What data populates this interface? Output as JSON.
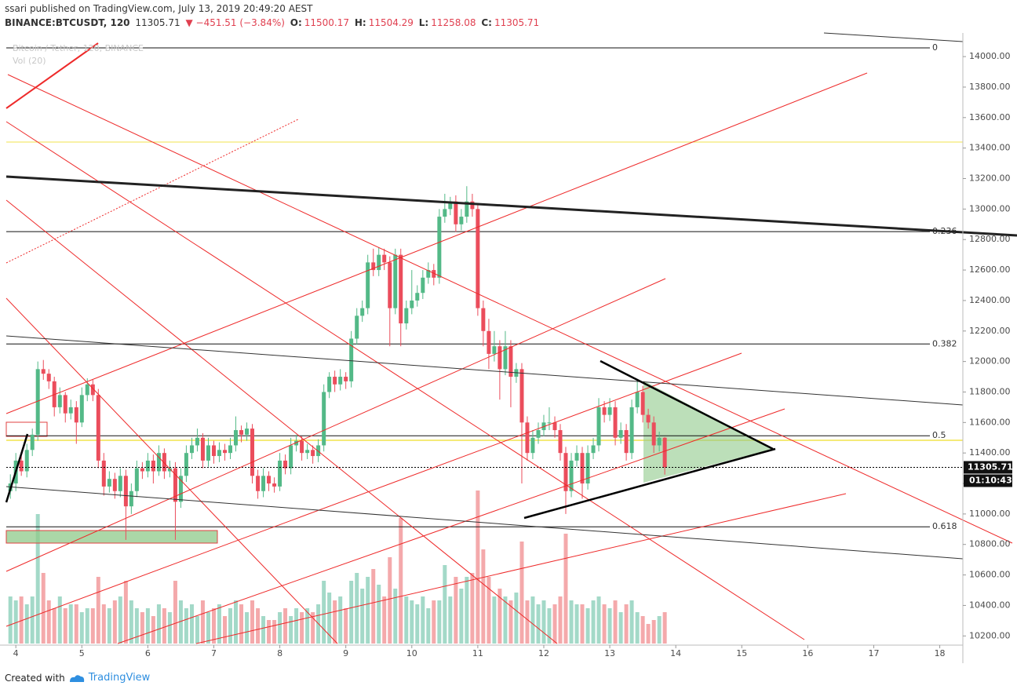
{
  "header": {
    "published": "ssari published on TradingView.com, July 13, 2019 20:49:20 AEST",
    "symbol": "BINANCE:BTCUSDT, 120",
    "last": "11305.71",
    "change": "▼ −451.51 (−3.84%)",
    "o_label": "O:",
    "o": "11500.17",
    "h_label": "H:",
    "h": "11504.29",
    "l_label": "L:",
    "l": "11258.08",
    "c_label": "C:",
    "c": "11305.71"
  },
  "footer": {
    "created": "Created with",
    "brand": "TradingView"
  },
  "chart_data": {
    "type": "candlestick",
    "series_name": "Bitcoin / Tether, 120, BINANCE",
    "up_color": "#53b987",
    "down_color": "#eb4d5c",
    "volume_up_color": "#a3d9c8",
    "volume_down_color": "#f4a9ab",
    "last_price_label": "11305.71",
    "countdown": "01:10:43",
    "xlim": [
      3.76,
      18.35
    ],
    "ylim": [
      10150,
      14155
    ],
    "xticks": [
      4,
      5,
      6,
      7,
      8,
      9,
      10,
      11,
      12,
      13,
      14,
      15,
      16,
      17,
      18
    ],
    "yticks": [
      {
        "value": 10200,
        "label": "10200.00"
      },
      {
        "value": 10400,
        "label": "10400.00"
      },
      {
        "value": 10600,
        "label": "10600.00"
      },
      {
        "value": 10800,
        "label": "10800.00"
      },
      {
        "value": 11000,
        "label": "11000.00"
      },
      {
        "value": 11200,
        "label": "11200.00"
      },
      {
        "value": 11400,
        "label": "11400.00"
      },
      {
        "value": 11600,
        "label": "11600.00"
      },
      {
        "value": 11800,
        "label": "11800.00"
      },
      {
        "value": 12000,
        "label": "12000.00"
      },
      {
        "value": 12200,
        "label": "12200.00"
      },
      {
        "value": 12400,
        "label": "12400.00"
      },
      {
        "value": 12600,
        "label": "12600.00"
      },
      {
        "value": 12800,
        "label": "12800.00"
      },
      {
        "value": 13000,
        "label": "13000.00"
      },
      {
        "value": 13200,
        "label": "13200.00"
      },
      {
        "value": 13400,
        "label": "13400.00"
      },
      {
        "value": 13600,
        "label": "13600.00"
      },
      {
        "value": 13800,
        "label": "13800.00"
      },
      {
        "value": 14000,
        "label": "14000.00"
      }
    ],
    "fib_levels": [
      {
        "value": 14057,
        "label": "0"
      },
      {
        "value": 12852,
        "label": "0.236"
      },
      {
        "value": 12115,
        "label": "0.382"
      },
      {
        "value": 11513,
        "label": "0.5"
      },
      {
        "value": 10916,
        "label": "0.618"
      }
    ],
    "x": [
      3.917,
      4,
      4.083,
      4.167,
      4.25,
      4.333,
      4.417,
      4.5,
      4.583,
      4.667,
      4.75,
      4.833,
      4.917,
      5,
      5.083,
      5.167,
      5.25,
      5.333,
      5.417,
      5.5,
      5.583,
      5.667,
      5.75,
      5.833,
      5.917,
      6,
      6.083,
      6.167,
      6.25,
      6.333,
      6.417,
      6.5,
      6.583,
      6.667,
      6.75,
      6.833,
      6.917,
      7,
      7.083,
      7.167,
      7.25,
      7.333,
      7.417,
      7.5,
      7.583,
      7.667,
      7.75,
      7.833,
      7.917,
      8,
      8.083,
      8.167,
      8.25,
      8.333,
      8.417,
      8.5,
      8.583,
      8.667,
      8.75,
      8.833,
      8.917,
      9,
      9.083,
      9.167,
      9.25,
      9.333,
      9.417,
      9.5,
      9.583,
      9.667,
      9.75,
      9.833,
      9.917,
      10,
      10.083,
      10.167,
      10.25,
      10.333,
      10.417,
      10.5,
      10.583,
      10.667,
      10.75,
      10.833,
      10.917,
      11,
      11.083,
      11.167,
      11.25,
      11.333,
      11.417,
      11.5,
      11.583,
      11.667,
      11.75,
      11.833,
      11.917,
      12,
      12.083,
      12.167,
      12.25,
      12.333,
      12.417,
      12.5,
      12.583,
      12.667,
      12.75,
      12.833,
      12.917,
      13,
      13.083,
      13.167,
      13.25,
      13.333,
      13.417,
      13.5,
      13.583,
      13.667,
      13.75,
      13.833
    ],
    "ohlc": [
      [
        11150,
        11260,
        11100,
        11200
      ],
      [
        11200,
        11400,
        11150,
        11350
      ],
      [
        11350,
        11380,
        11250,
        11280
      ],
      [
        11280,
        11460,
        11240,
        11420
      ],
      [
        11420,
        11560,
        11380,
        11520
      ],
      [
        11520,
        12000,
        11480,
        11950
      ],
      [
        11950,
        12010,
        11880,
        11920
      ],
      [
        11920,
        11950,
        11820,
        11870
      ],
      [
        11870,
        11900,
        11640,
        11700
      ],
      [
        11700,
        11830,
        11660,
        11780
      ],
      [
        11780,
        11800,
        11600,
        11660
      ],
      [
        11660,
        11750,
        11620,
        11700
      ],
      [
        11700,
        11740,
        11460,
        11600
      ],
      [
        11600,
        11830,
        11570,
        11780
      ],
      [
        11780,
        11890,
        11740,
        11850
      ],
      [
        11850,
        11880,
        11740,
        11780
      ],
      [
        11780,
        11820,
        11300,
        11350
      ],
      [
        11350,
        11400,
        11120,
        11180
      ],
      [
        11180,
        11280,
        11140,
        11230
      ],
      [
        11230,
        11270,
        11100,
        11150
      ],
      [
        11150,
        11300,
        11110,
        11250
      ],
      [
        11250,
        11290,
        10830,
        11050
      ],
      [
        11050,
        11200,
        11000,
        11150
      ],
      [
        11150,
        11350,
        11110,
        11300
      ],
      [
        11300,
        11340,
        11230,
        11280
      ],
      [
        11280,
        11400,
        11240,
        11350
      ],
      [
        11350,
        11390,
        11200,
        11280
      ],
      [
        11280,
        11450,
        11250,
        11400
      ],
      [
        11400,
        11430,
        11230,
        11280
      ],
      [
        11280,
        11350,
        11240,
        11300
      ],
      [
        11300,
        11340,
        10830,
        11080
      ],
      [
        11080,
        11300,
        11040,
        11250
      ],
      [
        11250,
        11450,
        11210,
        11400
      ],
      [
        11400,
        11500,
        11360,
        11450
      ],
      [
        11450,
        11560,
        11410,
        11500
      ],
      [
        11500,
        11530,
        11300,
        11350
      ],
      [
        11350,
        11500,
        11310,
        11450
      ],
      [
        11450,
        11480,
        11330,
        11380
      ],
      [
        11380,
        11470,
        11340,
        11420
      ],
      [
        11420,
        11460,
        11350,
        11400
      ],
      [
        11400,
        11500,
        11360,
        11450
      ],
      [
        11450,
        11640,
        11410,
        11550
      ],
      [
        11550,
        11580,
        11470,
        11520
      ],
      [
        11520,
        11600,
        11480,
        11560
      ],
      [
        11560,
        11590,
        11200,
        11250
      ],
      [
        11250,
        11290,
        11100,
        11150
      ],
      [
        11150,
        11300,
        11110,
        11250
      ],
      [
        11250,
        11280,
        11150,
        11200
      ],
      [
        11200,
        11240,
        11140,
        11180
      ],
      [
        11180,
        11400,
        11150,
        11350
      ],
      [
        11350,
        11390,
        11260,
        11300
      ],
      [
        11300,
        11500,
        11260,
        11450
      ],
      [
        11450,
        11520,
        11410,
        11480
      ],
      [
        11480,
        11510,
        11350,
        11400
      ],
      [
        11400,
        11460,
        11360,
        11420
      ],
      [
        11420,
        11450,
        11330,
        11380
      ],
      [
        11380,
        11490,
        11340,
        11450
      ],
      [
        11450,
        11850,
        11410,
        11800
      ],
      [
        11800,
        11930,
        11760,
        11900
      ],
      [
        11900,
        11940,
        11800,
        11850
      ],
      [
        11850,
        11950,
        11810,
        11900
      ],
      [
        11900,
        11930,
        11820,
        11870
      ],
      [
        11870,
        12200,
        11830,
        12150
      ],
      [
        12150,
        12350,
        12110,
        12300
      ],
      [
        12300,
        12400,
        12260,
        12350
      ],
      [
        12350,
        12700,
        12310,
        12650
      ],
      [
        12650,
        12740,
        12560,
        12600
      ],
      [
        12600,
        12750,
        12560,
        12700
      ],
      [
        12700,
        12740,
        12600,
        12650
      ],
      [
        12650,
        12690,
        12100,
        12350
      ],
      [
        12350,
        12740,
        12310,
        12700
      ],
      [
        12700,
        12740,
        12100,
        12250
      ],
      [
        12250,
        12400,
        12210,
        12350
      ],
      [
        12350,
        12600,
        12310,
        12400
      ],
      [
        12400,
        12500,
        12360,
        12450
      ],
      [
        12450,
        12600,
        12410,
        12550
      ],
      [
        12550,
        12650,
        12510,
        12600
      ],
      [
        12600,
        12640,
        12500,
        12550
      ],
      [
        12550,
        13000,
        12510,
        12950
      ],
      [
        12950,
        13100,
        12910,
        13000
      ],
      [
        13000,
        13080,
        12960,
        13050
      ],
      [
        13050,
        13090,
        12850,
        12900
      ],
      [
        12900,
        13000,
        12860,
        12950
      ],
      [
        12950,
        13150,
        12910,
        13050
      ],
      [
        13050,
        13100,
        12950,
        13000
      ],
      [
        13000,
        13040,
        12300,
        12350
      ],
      [
        12350,
        12400,
        12100,
        12200
      ],
      [
        12200,
        12280,
        11950,
        12050
      ],
      [
        12050,
        12200,
        12000,
        12100
      ],
      [
        12100,
        12140,
        11750,
        11950
      ],
      [
        11950,
        12200,
        11910,
        12100
      ],
      [
        12100,
        12140,
        11700,
        11900
      ],
      [
        11900,
        11990,
        11860,
        11950
      ],
      [
        11950,
        11990,
        11200,
        11600
      ],
      [
        11600,
        11640,
        11350,
        11400
      ],
      [
        11400,
        11550,
        11360,
        11500
      ],
      [
        11500,
        11600,
        11460,
        11550
      ],
      [
        11550,
        11650,
        11510,
        11600
      ],
      [
        11600,
        11700,
        11550,
        11600
      ],
      [
        11600,
        11640,
        11500,
        11550
      ],
      [
        11550,
        11590,
        11350,
        11400
      ],
      [
        11400,
        11440,
        11000,
        11150
      ],
      [
        11150,
        11400,
        11110,
        11350
      ],
      [
        11350,
        11450,
        11310,
        11400
      ],
      [
        11400,
        11440,
        11100,
        11200
      ],
      [
        11200,
        11450,
        11160,
        11400
      ],
      [
        11400,
        11500,
        11360,
        11450
      ],
      [
        11450,
        11760,
        11410,
        11700
      ],
      [
        11700,
        11740,
        11600,
        11650
      ],
      [
        11650,
        11760,
        11610,
        11700
      ],
      [
        11700,
        11740,
        11450,
        11500
      ],
      [
        11500,
        11600,
        11460,
        11550
      ],
      [
        11550,
        11590,
        11350,
        11400
      ],
      [
        11400,
        11750,
        11360,
        11700
      ],
      [
        11700,
        11880,
        11660,
        11800
      ],
      [
        11800,
        11840,
        11600,
        11650
      ],
      [
        11650,
        11690,
        11560,
        11600
      ],
      [
        11600,
        11640,
        11400,
        11450
      ],
      [
        11450,
        11540,
        11410,
        11500
      ],
      [
        11500.17,
        11504.29,
        11258.08,
        11305.71
      ]
    ],
    "volume": {
      "name": "Vol (20)",
      "values": [
        60,
        55,
        60,
        50,
        60,
        165,
        90,
        55,
        45,
        60,
        45,
        50,
        50,
        40,
        45,
        45,
        85,
        50,
        45,
        55,
        60,
        80,
        55,
        45,
        40,
        45,
        35,
        50,
        45,
        40,
        80,
        55,
        45,
        50,
        35,
        55,
        40,
        45,
        50,
        35,
        45,
        55,
        50,
        40,
        55,
        45,
        35,
        30,
        30,
        40,
        45,
        35,
        45,
        40,
        45,
        40,
        50,
        80,
        65,
        55,
        60,
        45,
        80,
        90,
        70,
        85,
        95,
        75,
        60,
        110,
        70,
        160,
        60,
        55,
        50,
        60,
        45,
        55,
        55,
        100,
        60,
        85,
        70,
        85,
        90,
        195,
        120,
        85,
        60,
        70,
        60,
        55,
        65,
        130,
        55,
        60,
        50,
        55,
        45,
        50,
        60,
        140,
        55,
        50,
        50,
        45,
        55,
        60,
        50,
        45,
        55,
        40,
        50,
        55,
        40,
        35,
        25,
        30,
        35,
        40
      ]
    }
  }
}
